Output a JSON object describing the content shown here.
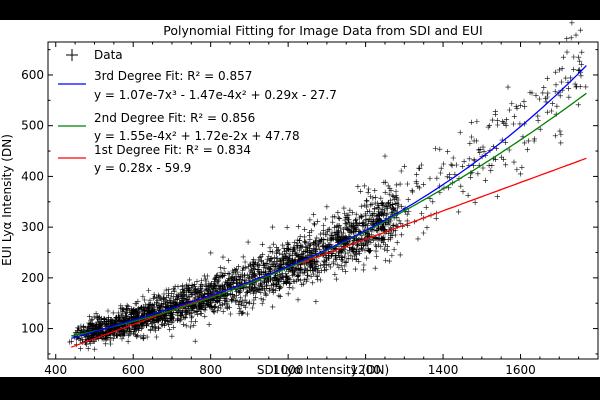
{
  "chart_data": {
    "type": "scatter",
    "title": "Polynomial Fitting for Image Data from SDI and EUI",
    "xlabel": "SDI Lyα Intensity (DN)",
    "ylabel": "EUI Lyα Intensity (DN)",
    "xlim": [
      380,
      1800
    ],
    "ylim": [
      40,
      665
    ],
    "xticks": [
      400,
      600,
      800,
      1000,
      1200,
      1400,
      1600
    ],
    "yticks": [
      100,
      200,
      300,
      400,
      500,
      600
    ],
    "grid": false,
    "legend_position": "top-left",
    "scatter": {
      "name": "Data",
      "marker": "+",
      "color": "#000000",
      "point_count": 9000,
      "x_range": [
        430,
        1770
      ],
      "outliers": [
        [
          1720,
          645
        ],
        [
          1700,
          610
        ],
        [
          1660,
          575
        ],
        [
          1640,
          560
        ],
        [
          1600,
          540
        ],
        [
          1750,
          635
        ],
        [
          1560,
          505
        ],
        [
          1520,
          500
        ],
        [
          1480,
          470
        ],
        [
          1690,
          480
        ],
        [
          1620,
          470
        ],
        [
          1450,
          420
        ],
        [
          1380,
          455
        ],
        [
          1300,
          420
        ],
        [
          760,
          75
        ],
        [
          700,
          85
        ],
        [
          880,
          130
        ],
        [
          1440,
          330
        ],
        [
          1540,
          360
        ],
        [
          1100,
          340
        ],
        [
          1180,
          380
        ],
        [
          960,
          300
        ],
        [
          1600,
          405
        ],
        [
          640,
          175
        ],
        [
          1250,
          440
        ]
      ]
    },
    "series": [
      {
        "name": "3rd Degree Fit: R² = 0.857",
        "equation": "y = 1.07e-7x³ - 1.47e-4x² + 0.29x - 27.7",
        "color": "#0000ff",
        "degree": 3,
        "coefficients": [
          1.07e-07,
          -0.000147,
          0.29,
          -27.7
        ],
        "x_range": [
          440,
          1770
        ]
      },
      {
        "name": "2nd Degree Fit: R² = 0.856",
        "equation": "y = 1.55e-4x² + 1.72e-2x + 47.78",
        "color": "#008000",
        "degree": 2,
        "coefficients": [
          0.000155,
          0.0172,
          47.78
        ],
        "x_range": [
          440,
          1770
        ]
      },
      {
        "name": "1st Degree Fit: R² = 0.834",
        "equation": "y = 0.28x - 59.9",
        "color": "#ff0000",
        "degree": 1,
        "coefficients": [
          0.28,
          -59.9
        ],
        "x_range": [
          440,
          1770
        ]
      }
    ]
  }
}
